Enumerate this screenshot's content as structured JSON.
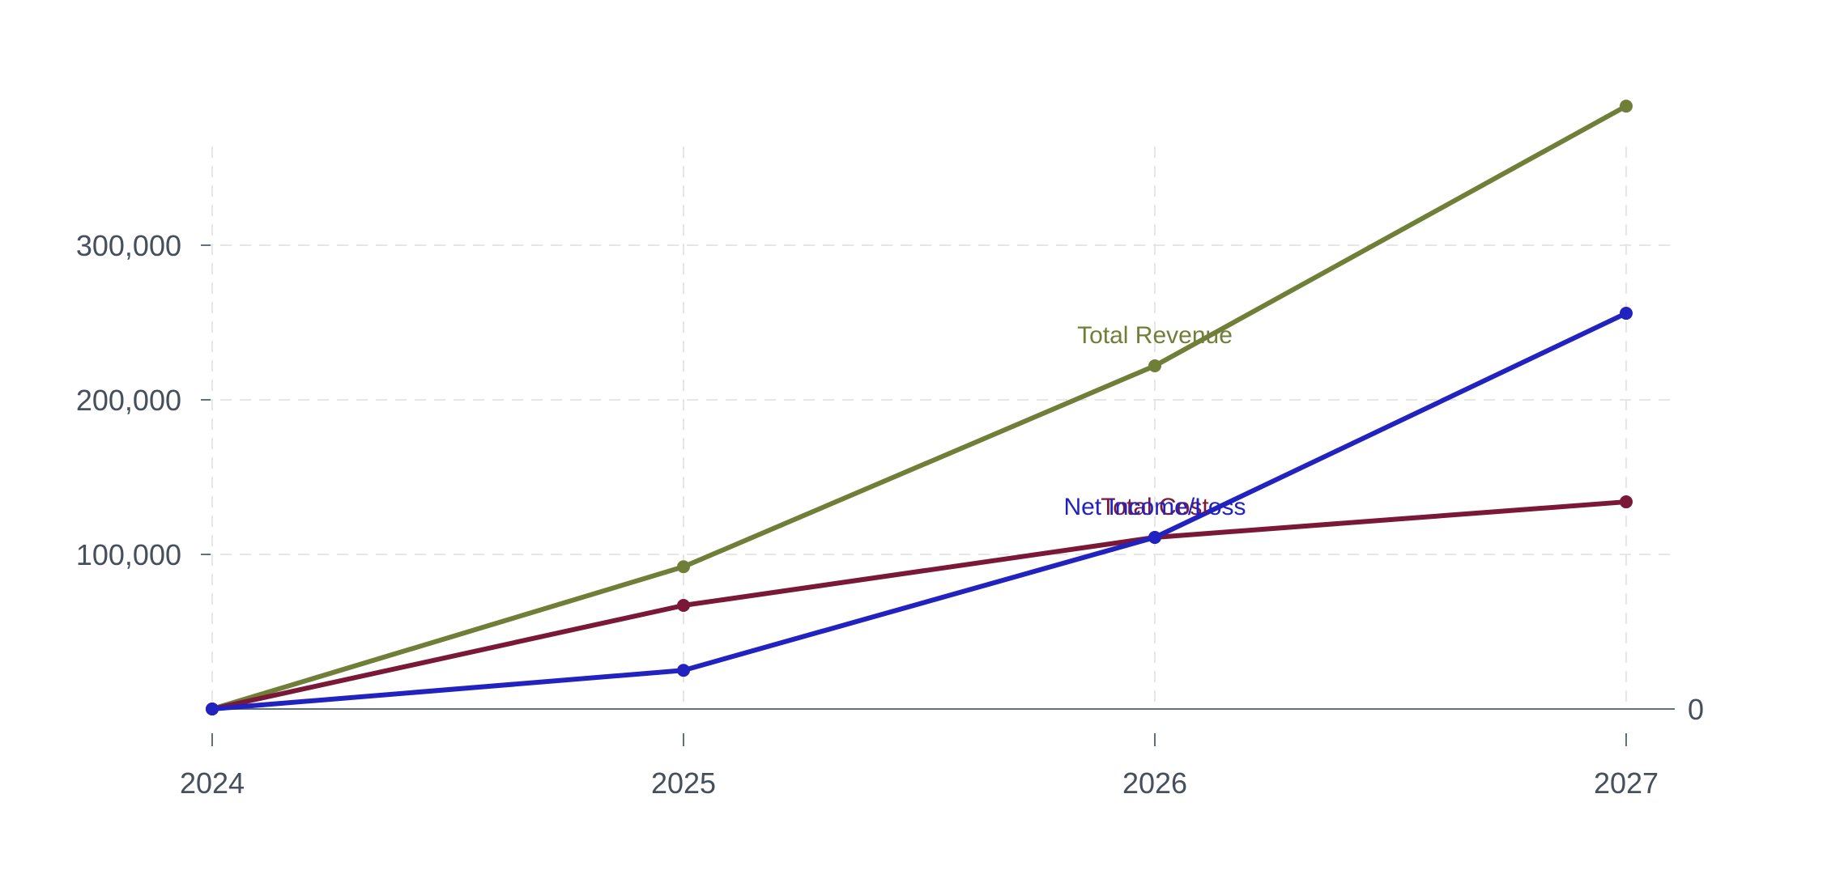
{
  "chart_data": {
    "type": "line",
    "title": "",
    "xlabel": "",
    "ylabel": "",
    "x": [
      "2024",
      "2025",
      "2026",
      "2027"
    ],
    "ylim": [
      -30000,
      390000
    ],
    "y_ticks": [
      {
        "value": 0,
        "label": "0",
        "side": "right"
      },
      {
        "value": 100000,
        "label": "100,000",
        "side": "left"
      },
      {
        "value": 200000,
        "label": "200,000",
        "side": "left"
      },
      {
        "value": 300000,
        "label": "300,000",
        "side": "left"
      }
    ],
    "grid": true,
    "series": [
      {
        "name": "Total Revenue",
        "color": "#6f7f37",
        "values": [
          0,
          92000,
          222000,
          390000
        ],
        "label_at_index": 2
      },
      {
        "name": "Total Cost",
        "color": "#7a1838",
        "values": [
          0,
          67000,
          111000,
          134000
        ],
        "label_at_index": 2
      },
      {
        "name": "Net Income/Loss",
        "color": "#2222c0",
        "values": [
          0,
          25000,
          111000,
          256000
        ],
        "label_at_index": 2
      }
    ],
    "colors": {
      "axis": "#5f7080",
      "tick_label": "#46505c",
      "grid": "#e6e6e6"
    }
  }
}
